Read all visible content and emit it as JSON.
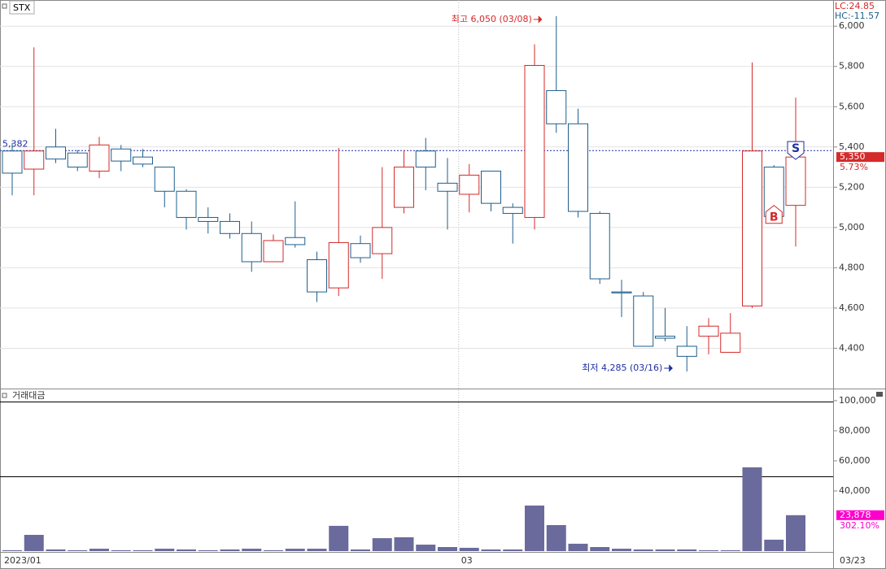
{
  "chart_data": [
    {
      "type": "candlestick",
      "title": "STX",
      "stats": [
        "LC:24.85",
        "HC:-11.57"
      ],
      "categories": [
        "2023/01",
        null,
        null,
        null,
        null,
        null,
        null,
        null,
        null,
        null,
        null,
        null,
        null,
        null,
        null,
        null,
        null,
        null,
        null,
        null,
        null,
        "03",
        null,
        null,
        null,
        null,
        null,
        null,
        null,
        null,
        null,
        null,
        null,
        null,
        null,
        null,
        null
      ],
      "last_date": "03/23",
      "open": [
        5380,
        5290,
        5400,
        5370,
        5280,
        5390,
        5350,
        5300,
        5180,
        5050,
        5030,
        4970,
        4830,
        4950,
        4840,
        4700,
        4920,
        4870,
        5100,
        5380,
        5220,
        5165,
        5280,
        5100,
        5050,
        5680,
        5515,
        5070,
        4680,
        4660,
        4460,
        4410,
        4460,
        4380,
        4610,
        5300,
        5110
      ],
      "high": [
        5420,
        5895,
        5490,
        5385,
        5450,
        5410,
        5390,
        5300,
        5190,
        5100,
        5070,
        5030,
        4965,
        5130,
        4880,
        5395,
        4960,
        5300,
        5385,
        5445,
        5345,
        5315,
        5280,
        5120,
        5910,
        6050,
        5590,
        5080,
        4740,
        4680,
        4600,
        4510,
        4550,
        4575,
        5820,
        5310,
        5645
      ],
      "low": [
        5160,
        5160,
        5320,
        5280,
        5245,
        5280,
        5300,
        5100,
        4990,
        4970,
        4945,
        4780,
        4830,
        4900,
        4630,
        4660,
        4825,
        4745,
        5070,
        5185,
        4990,
        5075,
        5080,
        4920,
        4990,
        5470,
        5050,
        4720,
        4555,
        4410,
        4435,
        4285,
        4370,
        4380,
        4600,
        5045,
        4905
      ],
      "close": [
        5270,
        5380,
        5340,
        5300,
        5410,
        5330,
        5315,
        5180,
        5050,
        5030,
        4970,
        4830,
        4935,
        4915,
        4680,
        4925,
        4850,
        5000,
        5300,
        5300,
        5180,
        5260,
        5120,
        5070,
        5805,
        5515,
        5080,
        4745,
        4675,
        4410,
        4450,
        4360,
        4510,
        4475,
        5380,
        5055,
        5350
      ],
      "up_color": "#d42a2a",
      "down_color": "#1e5f8e",
      "ylim": [
        4200,
        6130
      ],
      "yticks": [
        {
          "value": 4400,
          "label": "4,400"
        },
        {
          "value": 4600,
          "label": "4,600"
        },
        {
          "value": 4800,
          "label": "4,800"
        },
        {
          "value": 5000,
          "label": "5,000"
        },
        {
          "value": 5200,
          "label": "5,200"
        },
        {
          "value": 5400,
          "label": "5,400"
        },
        {
          "value": 5600,
          "label": "5,600"
        },
        {
          "value": 5800,
          "label": "5,800"
        },
        {
          "value": 6000,
          "label": "6,000"
        }
      ],
      "grid": true,
      "reference_line": {
        "value": 5382,
        "label": "5,382"
      },
      "current": {
        "value": 5350,
        "label": "5,350",
        "change": "5.73%"
      },
      "annotations": [
        {
          "text": "최고 6,050 (03/08)",
          "index": 25,
          "value": 6050,
          "side": "left",
          "color": "#d42a2a"
        },
        {
          "text": "최저 4,285 (03/16)",
          "index": 31,
          "value": 4285,
          "side": "left",
          "color": "#1e2fa0"
        }
      ],
      "signals": [
        {
          "index": 36,
          "label": "S",
          "color": "#1e2fa0"
        },
        {
          "index": 35,
          "label": "B",
          "color": "#d42a2a"
        }
      ]
    },
    {
      "type": "volume",
      "title": "거래대금",
      "color": "#6a6a9c",
      "values": [
        600,
        10800,
        1100,
        600,
        1600,
        600,
        600,
        1600,
        1100,
        600,
        1100,
        1600,
        600,
        1600,
        1600,
        16800,
        1100,
        8600,
        9200,
        4300,
        2700,
        2200,
        1100,
        1100,
        30300,
        17300,
        4900,
        2700,
        1600,
        1100,
        1100,
        1100,
        600,
        600,
        55700,
        7600,
        23878
      ],
      "ylim": [
        0,
        105900
      ],
      "yticks": [
        {
          "value": 40000,
          "label": "40,000"
        },
        {
          "value": 60000,
          "label": "60,000"
        },
        {
          "value": 80000,
          "label": "80,000"
        },
        {
          "value": 100000,
          "label": "100,000"
        }
      ],
      "last_label": {
        "value": 23878,
        "label": "23,878",
        "change": "302.10%"
      }
    }
  ]
}
